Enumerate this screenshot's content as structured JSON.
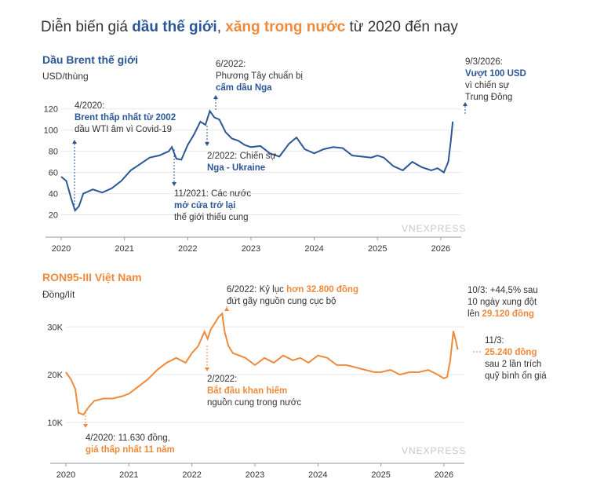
{
  "title": {
    "part1": "Diễn biến giá ",
    "highlight1": "dầu thế giới",
    "part2": ", ",
    "highlight2": "xăng trong nước",
    "part3": " từ 2020 đến nay"
  },
  "colors": {
    "brent": "#2b5797",
    "ron": "#ef8a3c",
    "grid": "#e8e8e8",
    "axis": "#999999"
  },
  "watermark": "VNEXPRESS",
  "chart_data": [
    {
      "type": "line",
      "title": "Dầu Brent thế giới",
      "ylabel": "USD/thùng",
      "x_ticks": [
        "2020",
        "2021",
        "2022",
        "2023",
        "2024",
        "2025",
        "2026"
      ],
      "y_ticks": [
        "20",
        "40",
        "60",
        "80",
        "100",
        "120"
      ],
      "ylim": [
        10,
        125
      ],
      "x": [
        2020.0,
        2020.08,
        2020.16,
        2020.22,
        2020.28,
        2020.35,
        2020.5,
        2020.65,
        2020.8,
        2020.95,
        2021.1,
        2021.25,
        2021.4,
        2021.55,
        2021.7,
        2021.75,
        2021.82,
        2021.9,
        2022.0,
        2022.1,
        2022.2,
        2022.28,
        2022.35,
        2022.42,
        2022.5,
        2022.6,
        2022.7,
        2022.8,
        2022.9,
        2023.0,
        2023.15,
        2023.3,
        2023.45,
        2023.6,
        2023.72,
        2023.85,
        2024.0,
        2024.15,
        2024.3,
        2024.45,
        2024.6,
        2024.75,
        2024.9,
        2025.0,
        2025.1,
        2025.25,
        2025.4,
        2025.55,
        2025.7,
        2025.85,
        2025.95,
        2026.05,
        2026.12,
        2026.16,
        2026.19
      ],
      "values": [
        56,
        52,
        35,
        24,
        28,
        40,
        44,
        41,
        45,
        52,
        62,
        68,
        74,
        76,
        80,
        84,
        73,
        72,
        86,
        96,
        108,
        105,
        118,
        112,
        110,
        98,
        92,
        90,
        86,
        84,
        85,
        78,
        75,
        87,
        93,
        82,
        78,
        82,
        84,
        83,
        76,
        75,
        74,
        76,
        74,
        66,
        62,
        70,
        65,
        62,
        64,
        60,
        70,
        90,
        108
      ],
      "annotations": [
        {
          "date": "4/2020:",
          "line1": "Brent thấp nhất từ 2002",
          "line2": "dầu WTI âm vì Covid-19"
        },
        {
          "date": "11/2021: Các nước",
          "line1": "mở cửa trở lại",
          "line2": "thế giới thiếu cung"
        },
        {
          "date": "6/2022:",
          "line1": "Phương Tây chuẩn bị",
          "line2": "cấm dầu Nga"
        },
        {
          "date": "2/2022: Chiến sự",
          "line1": "Nga - Ukraine",
          "line2": ""
        },
        {
          "date": "9/3/2026:",
          "line1": "Vượt 100 USD",
          "line2": "vì chiến sự",
          "line3": "Trung Đông"
        }
      ]
    },
    {
      "type": "line",
      "title": "RON95-III Việt Nam",
      "ylabel": "Đồng/lít",
      "x_ticks": [
        "2020",
        "2021",
        "2022",
        "2023",
        "2024",
        "2025",
        "2026"
      ],
      "y_ticks": [
        "10K",
        "20K",
        "30K"
      ],
      "ylim": [
        8000,
        33500
      ],
      "x": [
        2020.0,
        2020.08,
        2020.15,
        2020.2,
        2020.28,
        2020.35,
        2020.45,
        2020.6,
        2020.75,
        2020.9,
        2021.0,
        2021.15,
        2021.3,
        2021.45,
        2021.6,
        2021.75,
        2021.9,
        2022.0,
        2022.1,
        2022.2,
        2022.25,
        2022.3,
        2022.35,
        2022.42,
        2022.48,
        2022.52,
        2022.58,
        2022.65,
        2022.75,
        2022.85,
        2023.0,
        2023.15,
        2023.3,
        2023.45,
        2023.6,
        2023.72,
        2023.85,
        2024.0,
        2024.15,
        2024.3,
        2024.45,
        2024.6,
        2024.75,
        2024.9,
        2025.0,
        2025.15,
        2025.3,
        2025.45,
        2025.6,
        2025.75,
        2025.9,
        2026.0,
        2026.05,
        2026.1,
        2026.15,
        2026.19,
        2026.22
      ],
      "values": [
        20500,
        19000,
        17000,
        12000,
        11630,
        13000,
        14500,
        15000,
        15000,
        15500,
        16000,
        17500,
        19000,
        21000,
        22500,
        23500,
        22500,
        24500,
        26000,
        29000,
        27500,
        29500,
        30500,
        32000,
        32800,
        29000,
        26000,
        24500,
        24000,
        23500,
        22000,
        23500,
        22500,
        24000,
        23000,
        23500,
        22500,
        24000,
        23500,
        22000,
        22000,
        21500,
        21000,
        20500,
        20500,
        21000,
        20000,
        20500,
        20500,
        21000,
        20000,
        19200,
        19500,
        23000,
        29120,
        27000,
        25240
      ],
      "annotations": [
        {
          "date": "4/2020: 11.630 đồng,",
          "line1": "giá thấp nhất 11 năm"
        },
        {
          "date": "2/2022:",
          "line1": "Bắt đầu khan hiếm",
          "line2": "nguồn cung trong nước"
        },
        {
          "date": "6/2022: Kỷ lục ",
          "hl": "hơn 32.800 đồng",
          "line2": "đứt gãy nguồn cung cục bộ"
        },
        {
          "date": "10/3: +44,5% sau",
          "line1": "10 ngày xung đột",
          "line2": "lên ",
          "hl": "29.120 đồng"
        },
        {
          "date": "11/3:",
          "line1": "25.240 đồng",
          "line2": "sau 2 lần trích",
          "line3": "quỹ bình ổn giá"
        }
      ]
    }
  ]
}
